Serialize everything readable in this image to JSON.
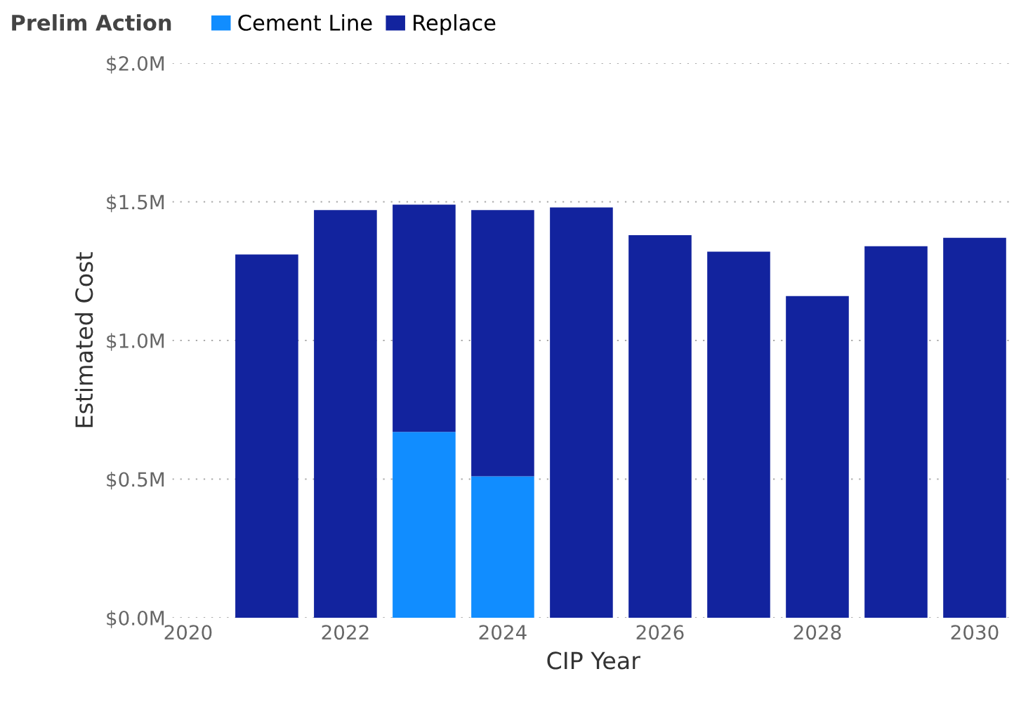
{
  "chart_data": {
    "type": "bar",
    "stacked": true,
    "xlabel": "CIP Year",
    "ylabel": "Estimated Cost",
    "legend_title": "Prelim Action",
    "legend": "top left",
    "grid": "y",
    "x": [
      2021,
      2022,
      2023,
      2024,
      2025,
      2026,
      2027,
      2028,
      2029,
      2030
    ],
    "series": [
      {
        "name": "Cement Line",
        "color": "#118dff",
        "values": [
          null,
          null,
          0.67,
          0.51,
          null,
          null,
          null,
          null,
          null,
          null
        ]
      },
      {
        "name": "Replace",
        "color": "#12239e",
        "values": [
          1.31,
          1.47,
          0.82,
          0.96,
          1.48,
          1.38,
          1.32,
          1.16,
          1.34,
          1.37
        ]
      }
    ],
    "xlim": [
      2019.8,
      2030.5
    ],
    "xticks": [
      2020,
      2022,
      2024,
      2026,
      2028,
      2030
    ],
    "ylim": [
      0,
      2.0
    ],
    "yticks": [
      {
        "value": 0,
        "label": "$0.0M"
      },
      {
        "value": 0.5,
        "label": "$0.5M"
      },
      {
        "value": 1.0,
        "label": "$1.0M"
      },
      {
        "value": 1.5,
        "label": "$1.5M"
      },
      {
        "value": 2.0,
        "label": "$2.0M"
      }
    ]
  }
}
